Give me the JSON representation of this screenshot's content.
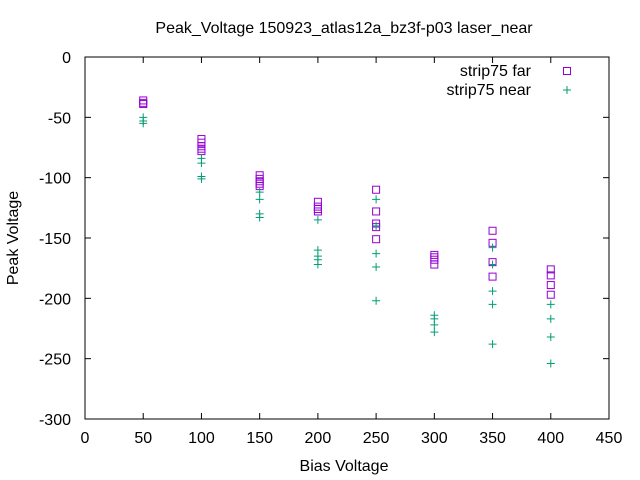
{
  "chart_data": {
    "type": "scatter",
    "title": "Peak_Voltage 150923_atlas12a_bz3f-p03 laser_near",
    "xlabel": "Bias Voltage",
    "ylabel": "Peak Voltage",
    "xlim": [
      0,
      450
    ],
    "ylim": [
      -300,
      0
    ],
    "xticks": [
      "0",
      "50",
      "100",
      "150",
      "200",
      "250",
      "300",
      "350",
      "400",
      "450"
    ],
    "yticks": [
      "0",
      "-50",
      "-100",
      "-150",
      "-200",
      "-250",
      "-300"
    ],
    "grid": false,
    "legend_position": "top-right",
    "series": [
      {
        "name": "strip75 far",
        "marker": "open-square",
        "color": "#9400d3",
        "points": [
          [
            50,
            -36
          ],
          [
            50,
            -38
          ],
          [
            50,
            -39
          ],
          [
            100,
            -68
          ],
          [
            100,
            -71
          ],
          [
            100,
            -74
          ],
          [
            100,
            -76
          ],
          [
            100,
            -78
          ],
          [
            150,
            -98
          ],
          [
            150,
            -101
          ],
          [
            150,
            -103
          ],
          [
            150,
            -105
          ],
          [
            150,
            -107
          ],
          [
            200,
            -120
          ],
          [
            200,
            -124
          ],
          [
            200,
            -126
          ],
          [
            200,
            -128
          ],
          [
            250,
            -110
          ],
          [
            250,
            -128
          ],
          [
            250,
            -138
          ],
          [
            250,
            -141
          ],
          [
            250,
            -151
          ],
          [
            300,
            -164
          ],
          [
            300,
            -166
          ],
          [
            300,
            -168
          ],
          [
            300,
            -172
          ],
          [
            350,
            -144
          ],
          [
            350,
            -154
          ],
          [
            350,
            -170
          ],
          [
            350,
            -182
          ],
          [
            400,
            -176
          ],
          [
            400,
            -181
          ],
          [
            400,
            -189
          ],
          [
            400,
            -197
          ]
        ]
      },
      {
        "name": "strip75 near",
        "marker": "plus",
        "color": "#009e73",
        "points": [
          [
            50,
            -50
          ],
          [
            50,
            -53
          ],
          [
            50,
            -55
          ],
          [
            100,
            -84
          ],
          [
            100,
            -88
          ],
          [
            100,
            -99
          ],
          [
            100,
            -101
          ],
          [
            150,
            -112
          ],
          [
            150,
            -118
          ],
          [
            150,
            -130
          ],
          [
            150,
            -133
          ],
          [
            200,
            -135
          ],
          [
            200,
            -160
          ],
          [
            200,
            -165
          ],
          [
            200,
            -168
          ],
          [
            200,
            -172
          ],
          [
            250,
            -118
          ],
          [
            250,
            -140
          ],
          [
            250,
            -163
          ],
          [
            250,
            -174
          ],
          [
            250,
            -202
          ],
          [
            300,
            -214
          ],
          [
            300,
            -217
          ],
          [
            300,
            -222
          ],
          [
            300,
            -228
          ],
          [
            350,
            -158
          ],
          [
            350,
            -172
          ],
          [
            350,
            -194
          ],
          [
            350,
            -205
          ],
          [
            350,
            -238
          ],
          [
            400,
            -205
          ],
          [
            400,
            -217
          ],
          [
            400,
            -232
          ],
          [
            400,
            -254
          ]
        ]
      }
    ]
  }
}
